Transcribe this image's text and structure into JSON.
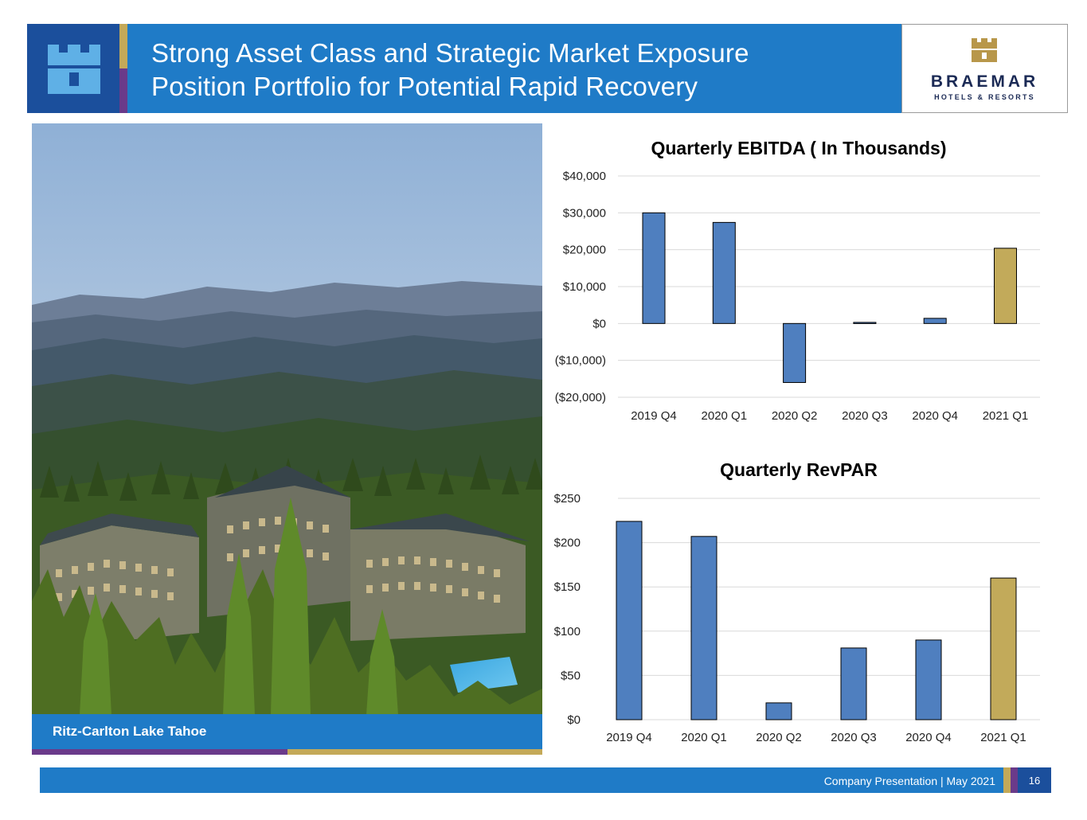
{
  "header": {
    "title_line1": "Strong Asset Class and Strategic Market Exposure",
    "title_line2": "Position Portfolio for Potential Rapid Recovery",
    "brand_name": "BRAEMAR",
    "brand_sub": "HOTELS & RESORTS",
    "logo_icon": "castle-tower-icon"
  },
  "photo": {
    "caption": "Ritz-Carlton Lake Tahoe"
  },
  "colors": {
    "navy": "#1b4f9c",
    "blue": "#1f7bc7",
    "gold": "#c4a958",
    "purple": "#6a3a8a",
    "bar_blue": "#4f7fbf",
    "bar_gold": "#c2aa5a"
  },
  "chart_data": [
    {
      "type": "bar",
      "title": "Quarterly EBITDA ( In Thousands)",
      "categories": [
        "2019 Q4",
        "2020 Q1",
        "2020 Q2",
        "2020 Q3",
        "2020 Q4",
        "2021 Q1"
      ],
      "values": [
        30000,
        27400,
        -16000,
        300,
        1400,
        20400
      ],
      "highlight_index": 5,
      "ylim": [
        -20000,
        40000
      ],
      "yticks": [
        40000,
        30000,
        20000,
        10000,
        0,
        -10000,
        -20000
      ],
      "ytick_labels": [
        "$40,000",
        "$30,000",
        "$20,000",
        "$10,000",
        "$0",
        "($10,000)",
        "($20,000)"
      ],
      "grid": true,
      "legend": "none"
    },
    {
      "type": "bar",
      "title": "Quarterly RevPAR",
      "categories": [
        "2019 Q4",
        "2020 Q1",
        "2020 Q2",
        "2020 Q3",
        "2020 Q4",
        "2021 Q1"
      ],
      "values": [
        224,
        207,
        19,
        81,
        90,
        160
      ],
      "highlight_index": 5,
      "ylim": [
        0,
        250
      ],
      "yticks": [
        250,
        200,
        150,
        100,
        50,
        0
      ],
      "ytick_labels": [
        "$250",
        "$200",
        "$150",
        "$100",
        "$50",
        "$0"
      ],
      "grid": true,
      "legend": "none"
    }
  ],
  "footer": {
    "text": "Company Presentation | May 2021",
    "page": "16"
  }
}
